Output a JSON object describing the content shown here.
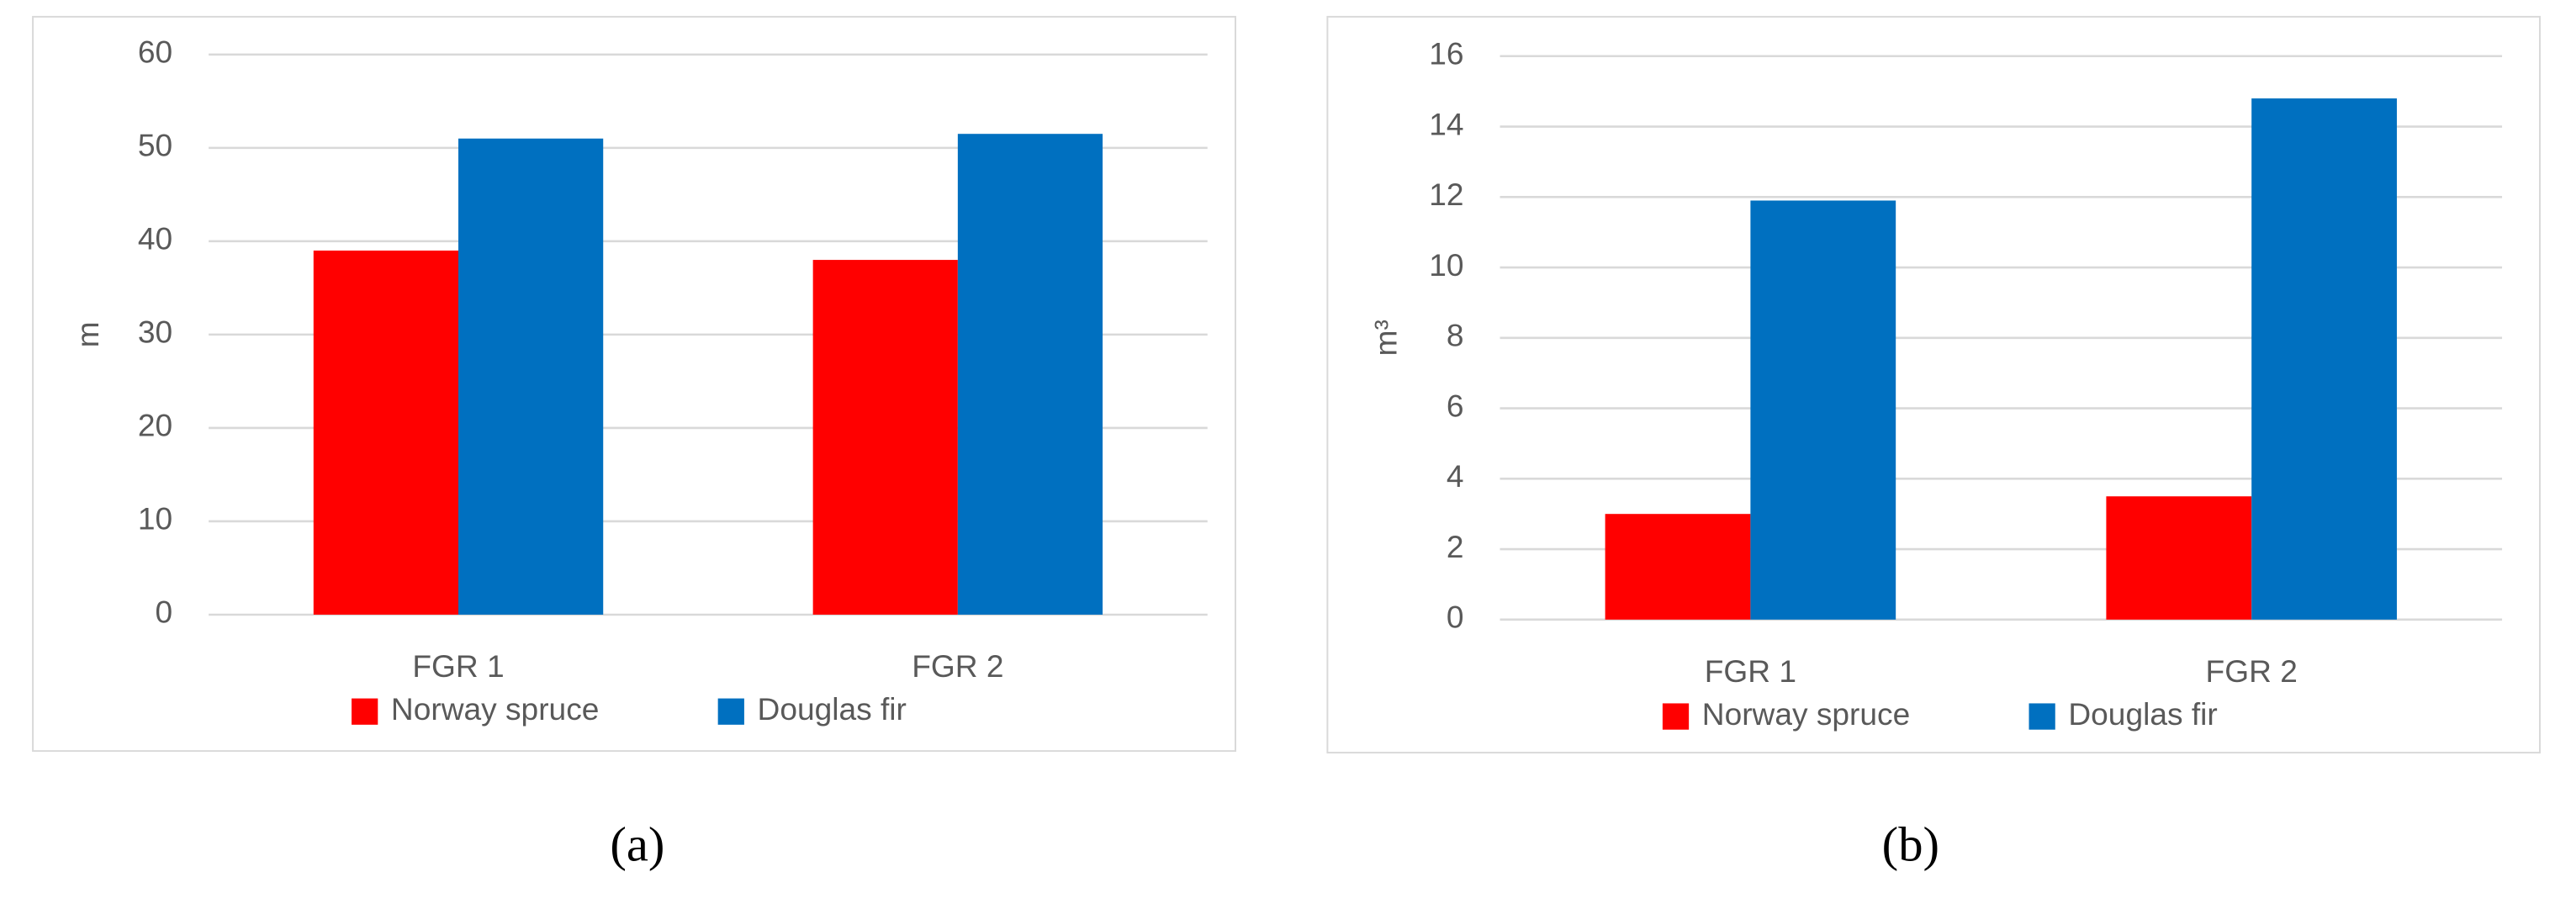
{
  "chart_data": [
    {
      "type": "bar",
      "panel_label": "(a)",
      "y_label": "m",
      "categories": [
        "FGR 1",
        "FGR 2"
      ],
      "series": [
        {
          "name": "Norway spruce",
          "color": "#ff0000",
          "values": [
            39,
            38
          ]
        },
        {
          "name": "Douglas fir",
          "color": "#0070c0",
          "values": [
            51,
            51.5
          ]
        }
      ],
      "ylim": [
        0,
        60
      ],
      "yticks": [
        0,
        10,
        20,
        30,
        40,
        50,
        60
      ],
      "grid": true,
      "legend": "bottom"
    },
    {
      "type": "bar",
      "panel_label": "(b)",
      "y_label": "m³",
      "categories": [
        "FGR 1",
        "FGR 2"
      ],
      "series": [
        {
          "name": "Norway spruce",
          "color": "#ff0000",
          "values": [
            3,
            3.5
          ]
        },
        {
          "name": "Douglas fir",
          "color": "#0070c0",
          "values": [
            11.9,
            14.8
          ]
        }
      ],
      "ylim": [
        0,
        16
      ],
      "yticks": [
        0,
        2,
        4,
        6,
        8,
        10,
        12,
        14,
        16
      ],
      "grid": true,
      "legend": "bottom"
    }
  ]
}
